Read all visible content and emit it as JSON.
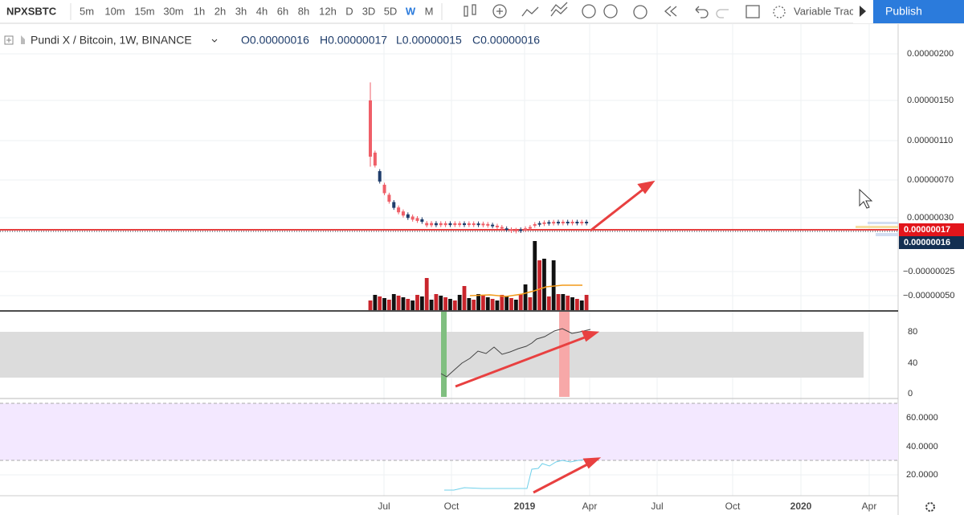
{
  "toolbar": {
    "symbol": "NPXSBTC",
    "intervals": [
      "5m",
      "10m",
      "15m",
      "30m",
      "1h",
      "2h",
      "3h",
      "4h",
      "6h",
      "8h",
      "12h",
      "D",
      "3D",
      "5D",
      "W",
      "M"
    ],
    "drawing_tool": "Variable Trac",
    "publish": "Publish"
  },
  "legend": {
    "title": "Pundi X / Bitcoin, 1W, BINANCE",
    "ohlc": [
      "O0.00000016",
      "H0.00000017",
      "L0.00000015",
      "C0.00000016"
    ]
  },
  "price_axis": {
    "labels": [
      "0.00000200",
      "0.00000150",
      "0.00000110",
      "0.00000070",
      "0.00000030"
    ],
    "last_high": "0.00000017",
    "last_close": "0.00000016"
  },
  "volume_axis": [
    "−0.00000025",
    "−0.00000050"
  ],
  "rsi_axis": [
    "80",
    "40",
    "0"
  ],
  "oscillator_axis": [
    "60.0000",
    "40.0000",
    "20.0000"
  ],
  "time_axis": [
    "Jul",
    "Oct",
    "2019",
    "Apr",
    "Jul",
    "Oct",
    "2020",
    "Apr"
  ]
}
